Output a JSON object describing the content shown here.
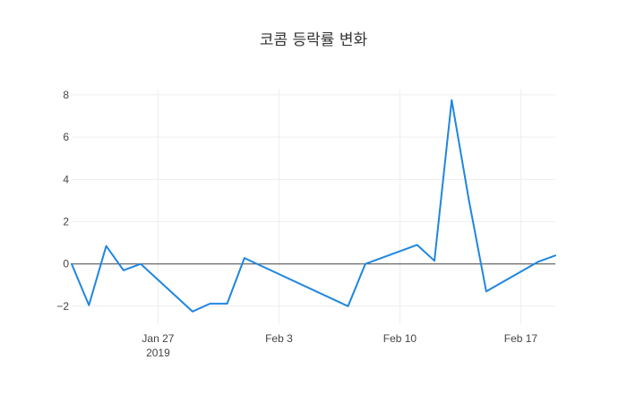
{
  "chart_data": {
    "type": "line",
    "title": "코콤 등락률 변화",
    "xlabel": "",
    "ylabel": "",
    "x_range": [
      "2019-01-22",
      "2019-02-19"
    ],
    "ylim": [
      -2.85,
      8.25
    ],
    "x_ticks": [
      {
        "date": "2019-01-27",
        "label": "Jan 27",
        "sublabel": "2019"
      },
      {
        "date": "2019-02-03",
        "label": "Feb 3",
        "sublabel": ""
      },
      {
        "date": "2019-02-10",
        "label": "Feb 10",
        "sublabel": ""
      },
      {
        "date": "2019-02-17",
        "label": "Feb 17",
        "sublabel": ""
      }
    ],
    "y_ticks": [
      -2,
      0,
      2,
      4,
      6,
      8
    ],
    "y_tick_labels": [
      "−2",
      "0",
      "2",
      "4",
      "6",
      "8"
    ],
    "grid": true,
    "zero_line": true,
    "line_color": "#1f86e0",
    "series": [
      {
        "x": [
          "2019-01-22",
          "2019-01-23",
          "2019-01-24",
          "2019-01-25",
          "2019-01-26",
          "2019-01-29",
          "2019-01-30",
          "2019-01-31",
          "2019-02-01",
          "2019-02-07",
          "2019-02-08",
          "2019-02-11",
          "2019-02-12",
          "2019-02-13",
          "2019-02-14",
          "2019-02-15",
          "2019-02-18",
          "2019-02-19"
        ],
        "y": [
          0.0,
          -1.95,
          0.85,
          -0.3,
          0.0,
          -2.25,
          -1.88,
          -1.88,
          0.28,
          -2.0,
          0.0,
          0.9,
          0.15,
          7.75,
          3.0,
          -1.3,
          0.1,
          0.4
        ]
      }
    ]
  }
}
